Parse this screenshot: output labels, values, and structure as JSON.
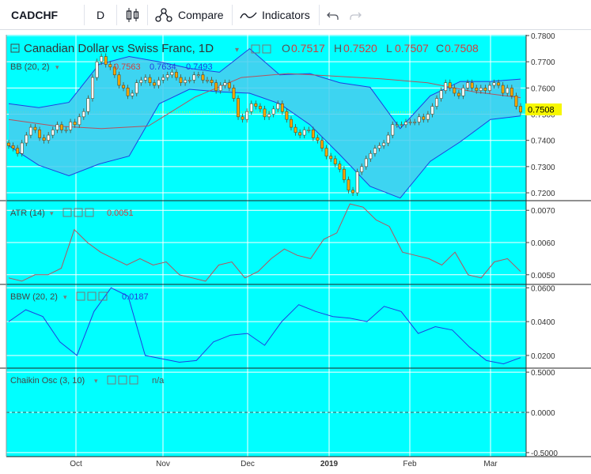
{
  "toolbar": {
    "symbol": "CADCHF",
    "interval": "D",
    "compare_label": "Compare",
    "indicators_label": "Indicators",
    "icons": [
      "candles-icon",
      "compare-icon",
      "indicators-icon",
      "undo-icon",
      "redo-icon"
    ]
  },
  "colors": {
    "background": "#00ffff",
    "band_fill": "#48cdef",
    "band_line": "#1f3fe0",
    "basis_line": "#b5525d",
    "atr_line": "#b5525d",
    "bbw_line": "#1f3fe0",
    "candle_up": "#ffffff",
    "candle_down": "#f7a600",
    "price_marker": "#f7f700",
    "grid": "#ffffff",
    "legend_value": "#d23c3c"
  },
  "legend": {
    "title": "Canadian Dollar vs Swiss Franc, 1D",
    "ohlc": [
      {
        "label": "O",
        "value": "0.7517"
      },
      {
        "label": "H",
        "value": "0.7520"
      },
      {
        "label": "L",
        "value": "0.7507"
      },
      {
        "label": "C",
        "value": "0.7508"
      }
    ],
    "bb": {
      "name": "BB (20, 2)",
      "values": [
        "0.7563",
        "0.7634",
        "0.7493"
      ]
    },
    "atr": {
      "name": "ATR (14)",
      "value": "0.0051"
    },
    "bbw": {
      "name": "BBW (20, 2)",
      "value": "0.0187"
    },
    "chaikin": {
      "name": "Chaikin Osc (3, 10)",
      "value": "n/a"
    }
  },
  "price_label": "0.7508",
  "chart_data": [
    {
      "type": "candlestick",
      "title": "Canadian Dollar vs Swiss Franc, 1D",
      "x_ticks": [
        "Oct",
        "Nov",
        "Dec",
        "2019",
        "Feb",
        "Mar"
      ],
      "y_ticks": [
        "0.7800",
        "0.7700",
        "0.7600",
        "0.7500",
        "0.7400",
        "0.7300",
        "0.7200"
      ],
      "ylim": [
        0.717,
        0.7803
      ],
      "last_price": 0.7508,
      "series": [
        {
          "name": "Close",
          "values": [
            0.738,
            0.737,
            0.735,
            0.739,
            0.742,
            0.745,
            0.744,
            0.741,
            0.74,
            0.742,
            0.744,
            0.746,
            0.744,
            0.744,
            0.747,
            0.746,
            0.749,
            0.751,
            0.756,
            0.764,
            0.77,
            0.772,
            0.769,
            0.768,
            0.765,
            0.761,
            0.76,
            0.757,
            0.758,
            0.762,
            0.763,
            0.764,
            0.762,
            0.761,
            0.763,
            0.764,
            0.765,
            0.766,
            0.764,
            0.762,
            0.763,
            0.763,
            0.765,
            0.765,
            0.763,
            0.763,
            0.762,
            0.759,
            0.761,
            0.762,
            0.76,
            0.756,
            0.749,
            0.748,
            0.751,
            0.754,
            0.753,
            0.752,
            0.749,
            0.75,
            0.752,
            0.754,
            0.751,
            0.748,
            0.745,
            0.743,
            0.742,
            0.744,
            0.744,
            0.741,
            0.74,
            0.737,
            0.734,
            0.733,
            0.731,
            0.729,
            0.725,
            0.721,
            0.72,
            0.728,
            0.73,
            0.733,
            0.735,
            0.737,
            0.738,
            0.739,
            0.742,
            0.746,
            0.746,
            0.746,
            0.747,
            0.747,
            0.747,
            0.749,
            0.748,
            0.75,
            0.753,
            0.756,
            0.759,
            0.762,
            0.76,
            0.758,
            0.757,
            0.76,
            0.762,
            0.76,
            0.759,
            0.76,
            0.759,
            0.761,
            0.762,
            0.761,
            0.758,
            0.76,
            0.757,
            0.753,
            0.7508
          ]
        },
        {
          "name": "BB Basis",
          "values": [
            0.748,
            0.7455,
            0.7445,
            0.7455,
            0.7565,
            0.764,
            0.7655,
            0.7645,
            0.7635,
            0.762,
            0.7585,
            0.7563
          ]
        },
        {
          "name": "BB Upper",
          "values": [
            0.754,
            0.7525,
            0.7545,
            0.769,
            0.772,
            0.77,
            0.7675,
            0.766,
            0.775,
            0.765,
            0.7655,
            0.762,
            0.7603,
            0.7445,
            0.757,
            0.7625,
            0.7625,
            0.7634
          ]
        },
        {
          "name": "BB Lower",
          "values": [
            0.738,
            0.7305,
            0.7265,
            0.731,
            0.734,
            0.754,
            0.7595,
            0.7585,
            0.758,
            0.754,
            0.746,
            0.7345,
            0.7225,
            0.718,
            0.732,
            0.7395,
            0.748,
            0.7493
          ]
        }
      ]
    },
    {
      "type": "line",
      "title": "ATR (14)",
      "y_ticks": [
        "0.0070",
        "0.0060",
        "0.0050"
      ],
      "ylim": [
        0.0047,
        0.0073
      ],
      "series": [
        {
          "name": "ATR",
          "values": [
            0.0049,
            0.0048,
            0.005,
            0.005,
            0.0052,
            0.0064,
            0.006,
            0.0057,
            0.0055,
            0.0053,
            0.0055,
            0.0053,
            0.0054,
            0.005,
            0.0049,
            0.0048,
            0.0053,
            0.0054,
            0.0049,
            0.0051,
            0.0055,
            0.0058,
            0.0056,
            0.0055,
            0.0061,
            0.0063,
            0.0072,
            0.0071,
            0.0067,
            0.0065,
            0.0057,
            0.0056,
            0.0055,
            0.0053,
            0.0057,
            0.005,
            0.0049,
            0.0054,
            0.0055,
            0.0051
          ]
        }
      ]
    },
    {
      "type": "line",
      "title": "BBW (20, 2)",
      "y_ticks": [
        "0.0600",
        "0.0400",
        "0.0200"
      ],
      "ylim": [
        0.0125,
        0.062
      ],
      "series": [
        {
          "name": "BBW",
          "values": [
            0.04,
            0.047,
            0.043,
            0.028,
            0.02,
            0.046,
            0.06,
            0.055,
            0.02,
            0.018,
            0.016,
            0.017,
            0.028,
            0.032,
            0.033,
            0.026,
            0.04,
            0.05,
            0.046,
            0.043,
            0.042,
            0.04,
            0.049,
            0.046,
            0.033,
            0.037,
            0.035,
            0.025,
            0.017,
            0.015,
            0.0187
          ]
        }
      ]
    },
    {
      "type": "line",
      "title": "Chaikin Osc (3, 10)",
      "y_ticks": [
        "0.5000",
        "0.0000",
        "-0.5000"
      ],
      "ylim": [
        -0.55,
        0.55
      ],
      "series": []
    }
  ]
}
